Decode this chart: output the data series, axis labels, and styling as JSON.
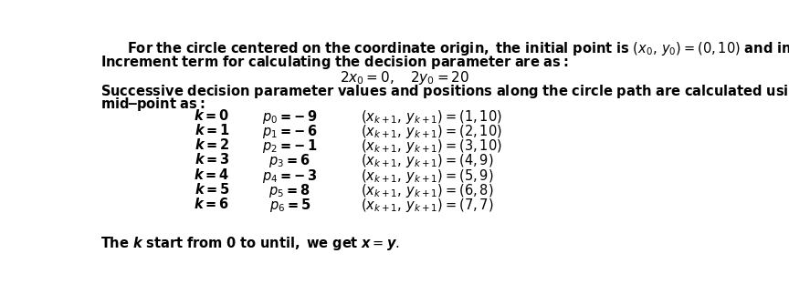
{
  "bg_color": "#ffffff",
  "text_color": "#000000",
  "rows": [
    {
      "k": "0",
      "p_idx": "0",
      "p_val": "-9",
      "next_x": "1",
      "next_y": "10"
    },
    {
      "k": "1",
      "p_idx": "1",
      "p_val": "-6",
      "next_x": "2",
      "next_y": "10"
    },
    {
      "k": "2",
      "p_idx": "2",
      "p_val": "-1",
      "next_x": "3",
      "next_y": "10"
    },
    {
      "k": "3",
      "p_idx": "3",
      "p_val": "6",
      "next_x": "4",
      "next_y": "9"
    },
    {
      "k": "4",
      "p_idx": "4",
      "p_val": "-3",
      "next_x": "5",
      "next_y": "9"
    },
    {
      "k": "5",
      "p_idx": "5",
      "p_val": "8",
      "next_x": "6",
      "next_y": "8"
    },
    {
      "k": "6",
      "p_idx": "6",
      "p_val": "5",
      "next_x": "7",
      "next_y": "7"
    }
  ]
}
